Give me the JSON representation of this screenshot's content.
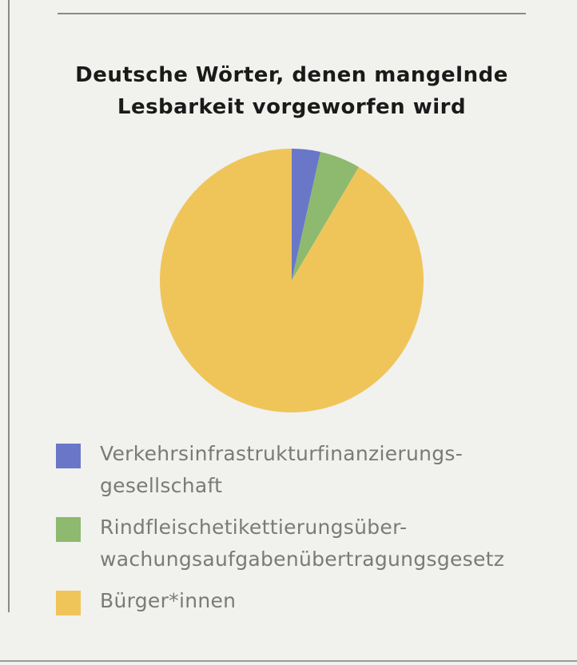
{
  "chart_data": {
    "type": "pie",
    "title_lines": [
      "Deutsche Wörter, denen mangelnde",
      "Lesbarkeit vorgeworfen wird"
    ],
    "slices": [
      {
        "label_lines": [
          "Verkehrsinfrastrukturfinanzierungs-",
          "gesellschaft"
        ],
        "value": 3.5,
        "color": "#6a77c8"
      },
      {
        "label_lines": [
          "Rindfleischetikettierungsüber-",
          "wachungsaufgabenübertragungsgesetz"
        ],
        "value": 5.0,
        "color": "#8dba6e"
      },
      {
        "label_lines": [
          "Bürger*innen"
        ],
        "value": 91.5,
        "color": "#efc55a"
      }
    ],
    "start_angle": "12 o'clock",
    "direction": "clockwise",
    "legend_position": "bottom"
  }
}
